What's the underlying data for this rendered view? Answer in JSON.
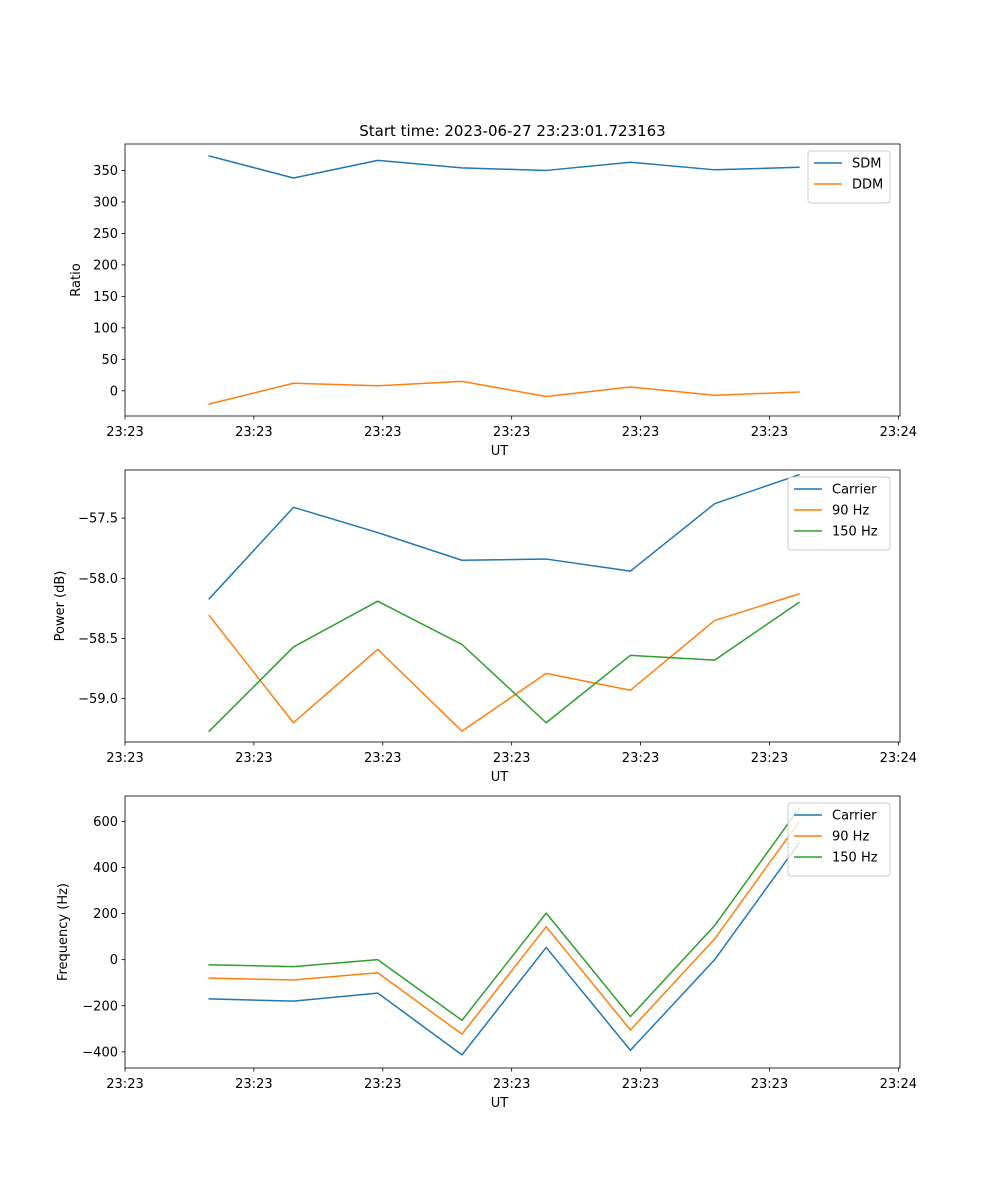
{
  "figure": {
    "title": "Start time: 2023-06-27 23:23:01.723163"
  },
  "chart_data": [
    {
      "type": "line",
      "xlabel": "UT",
      "ylabel": "Ratio",
      "xlim": [
        0,
        9.2
      ],
      "ylim": [
        -40,
        392
      ],
      "x": [
        1.0,
        2.0,
        3.0,
        4.0,
        5.0,
        6.0,
        7.0,
        8.0
      ],
      "xticks": [
        0,
        1.53,
        3.06,
        4.59,
        6.12,
        7.65,
        9.18
      ],
      "xtick_labels": [
        "23:23",
        "23:23",
        "23:23",
        "23:23",
        "23:23",
        "23:23",
        "23:24"
      ],
      "yticks": [
        0,
        50,
        100,
        150,
        200,
        250,
        300,
        350
      ],
      "ytick_labels": [
        "0",
        "50",
        "100",
        "150",
        "200",
        "250",
        "300",
        "350"
      ],
      "grid": false,
      "legend": "top-right",
      "series": [
        {
          "name": "SDM",
          "color": "#1f77b4",
          "values": [
            373,
            338,
            366,
            354,
            350,
            363,
            351,
            355
          ]
        },
        {
          "name": "DDM",
          "color": "#ff7f0e",
          "values": [
            -21,
            12,
            8,
            15,
            -9,
            6,
            -7,
            -2
          ]
        }
      ]
    },
    {
      "type": "line",
      "xlabel": "UT",
      "ylabel": "Power (dB)",
      "xlim": [
        0,
        9.2
      ],
      "ylim": [
        -59.36,
        -57.1
      ],
      "x": [
        1.0,
        2.0,
        3.0,
        4.0,
        5.0,
        6.0,
        7.0,
        8.0
      ],
      "xticks": [
        0,
        1.53,
        3.06,
        4.59,
        6.12,
        7.65,
        9.18
      ],
      "xtick_labels": [
        "23:23",
        "23:23",
        "23:23",
        "23:23",
        "23:23",
        "23:23",
        "23:24"
      ],
      "yticks": [
        -59.0,
        -58.5,
        -58.0,
        -57.5
      ],
      "ytick_labels": [
        "−59.0",
        "−58.5",
        "−58.0",
        "−57.5"
      ],
      "grid": false,
      "legend": "top-right",
      "series": [
        {
          "name": "Carrier",
          "color": "#1f77b4",
          "values": [
            -58.17,
            -57.41,
            -57.62,
            -57.85,
            -57.84,
            -57.94,
            -57.38,
            -57.14
          ]
        },
        {
          "name": "90 Hz",
          "color": "#ff7f0e",
          "values": [
            -58.31,
            -59.2,
            -58.59,
            -59.27,
            -58.79,
            -58.93,
            -58.35,
            -58.13
          ]
        },
        {
          "name": "150 Hz",
          "color": "#2ca02c",
          "values": [
            -59.27,
            -58.57,
            -58.19,
            -58.55,
            -59.2,
            -58.64,
            -58.68,
            -58.2
          ]
        }
      ]
    },
    {
      "type": "line",
      "xlabel": "UT",
      "ylabel": "Frequency (Hz)",
      "xlim": [
        0,
        9.2
      ],
      "ylim": [
        -470,
        710
      ],
      "x": [
        1.0,
        2.0,
        3.0,
        4.0,
        5.0,
        6.0,
        7.0,
        8.0
      ],
      "xticks": [
        0,
        1.53,
        3.06,
        4.59,
        6.12,
        7.65,
        9.18
      ],
      "xtick_labels": [
        "23:23",
        "23:23",
        "23:23",
        "23:23",
        "23:23",
        "23:23",
        "23:24"
      ],
      "yticks": [
        -400,
        -200,
        0,
        200,
        400,
        600
      ],
      "ytick_labels": [
        "−400",
        "−200",
        "0",
        "200",
        "400",
        "600"
      ],
      "grid": false,
      "legend": "top-right",
      "series": [
        {
          "name": "Carrier",
          "color": "#1f77b4",
          "values": [
            -170,
            -180,
            -145,
            -413,
            53,
            -393,
            0,
            505
          ]
        },
        {
          "name": "90 Hz",
          "color": "#ff7f0e",
          "values": [
            -80,
            -88,
            -57,
            -323,
            143,
            -305,
            90,
            597
          ]
        },
        {
          "name": "150 Hz",
          "color": "#2ca02c",
          "values": [
            -22,
            -30,
            0,
            -263,
            202,
            -247,
            148,
            655
          ]
        }
      ]
    }
  ]
}
